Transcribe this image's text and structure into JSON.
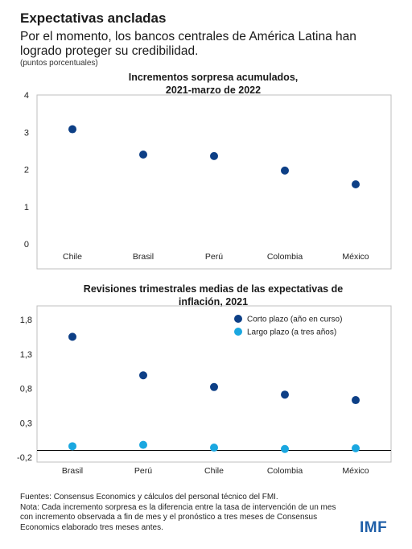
{
  "title": "Expectativas ancladas",
  "subtitle": "Por el momento, los bancos centrales de América Latina han logrado proteger su credibilidad.",
  "unit": "(puntos porcentuales)",
  "source_line": "Fuentes: Consensus Economics y cálculos del personal técnico del FMI.",
  "note": "Nota: Cada incremento sorpresa es la diferencia entre la tasa de intervención de un mes con incremento observada a fin de mes y el pronóstico a tres meses de Consensus Economics elaborado tres meses antes.",
  "logo": "IMF",
  "colors": {
    "dark": "#0d3f86",
    "light": "#1aa7e0"
  },
  "chart_data": [
    {
      "type": "scatter",
      "title": "Incrementos sorpresa acumulados, 2021-marzo de 2022",
      "title_lines": [
        "Incrementos sorpresa acumulados,",
        "2021-marzo de 2022"
      ],
      "categories": [
        "Chile",
        "Brasil",
        "Perú",
        "Colombia",
        "México"
      ],
      "series": [
        {
          "values": [
            3.08,
            2.4,
            2.36,
            1.97,
            1.6
          ],
          "color": "#0d3f86"
        }
      ],
      "yticks": [
        "4",
        "3",
        "2",
        "1",
        "0"
      ],
      "ylim": [
        0,
        4
      ],
      "grid": false
    },
    {
      "type": "scatter",
      "title": "Revisiones trimestrales medias de las expectativas de inflación, 2021",
      "title_lines": [
        "Revisiones trimestrales medias de las expectativas de",
        "inflación, 2021"
      ],
      "categories": [
        "Brasil",
        "Perú",
        "Chile",
        "Colombia",
        "México"
      ],
      "series": [
        {
          "name": "Corto plazo (año en curso)",
          "values": [
            1.55,
            0.99,
            0.82,
            0.71,
            0.63
          ],
          "color": "#0d3f86"
        },
        {
          "name": "Largo plazo (a tres años)",
          "values": [
            -0.04,
            -0.02,
            -0.06,
            -0.08,
            -0.07
          ],
          "color": "#1aa7e0"
        }
      ],
      "yticks": [
        "1,8",
        "1,3",
        "0,8",
        "0,3",
        "-0,2"
      ],
      "ytick_values": [
        1.8,
        1.3,
        0.8,
        0.3,
        -0.2
      ],
      "ylim": [
        -0.2,
        1.8
      ],
      "baseline": -0.1,
      "legend_position": "top-right",
      "grid": false
    }
  ]
}
